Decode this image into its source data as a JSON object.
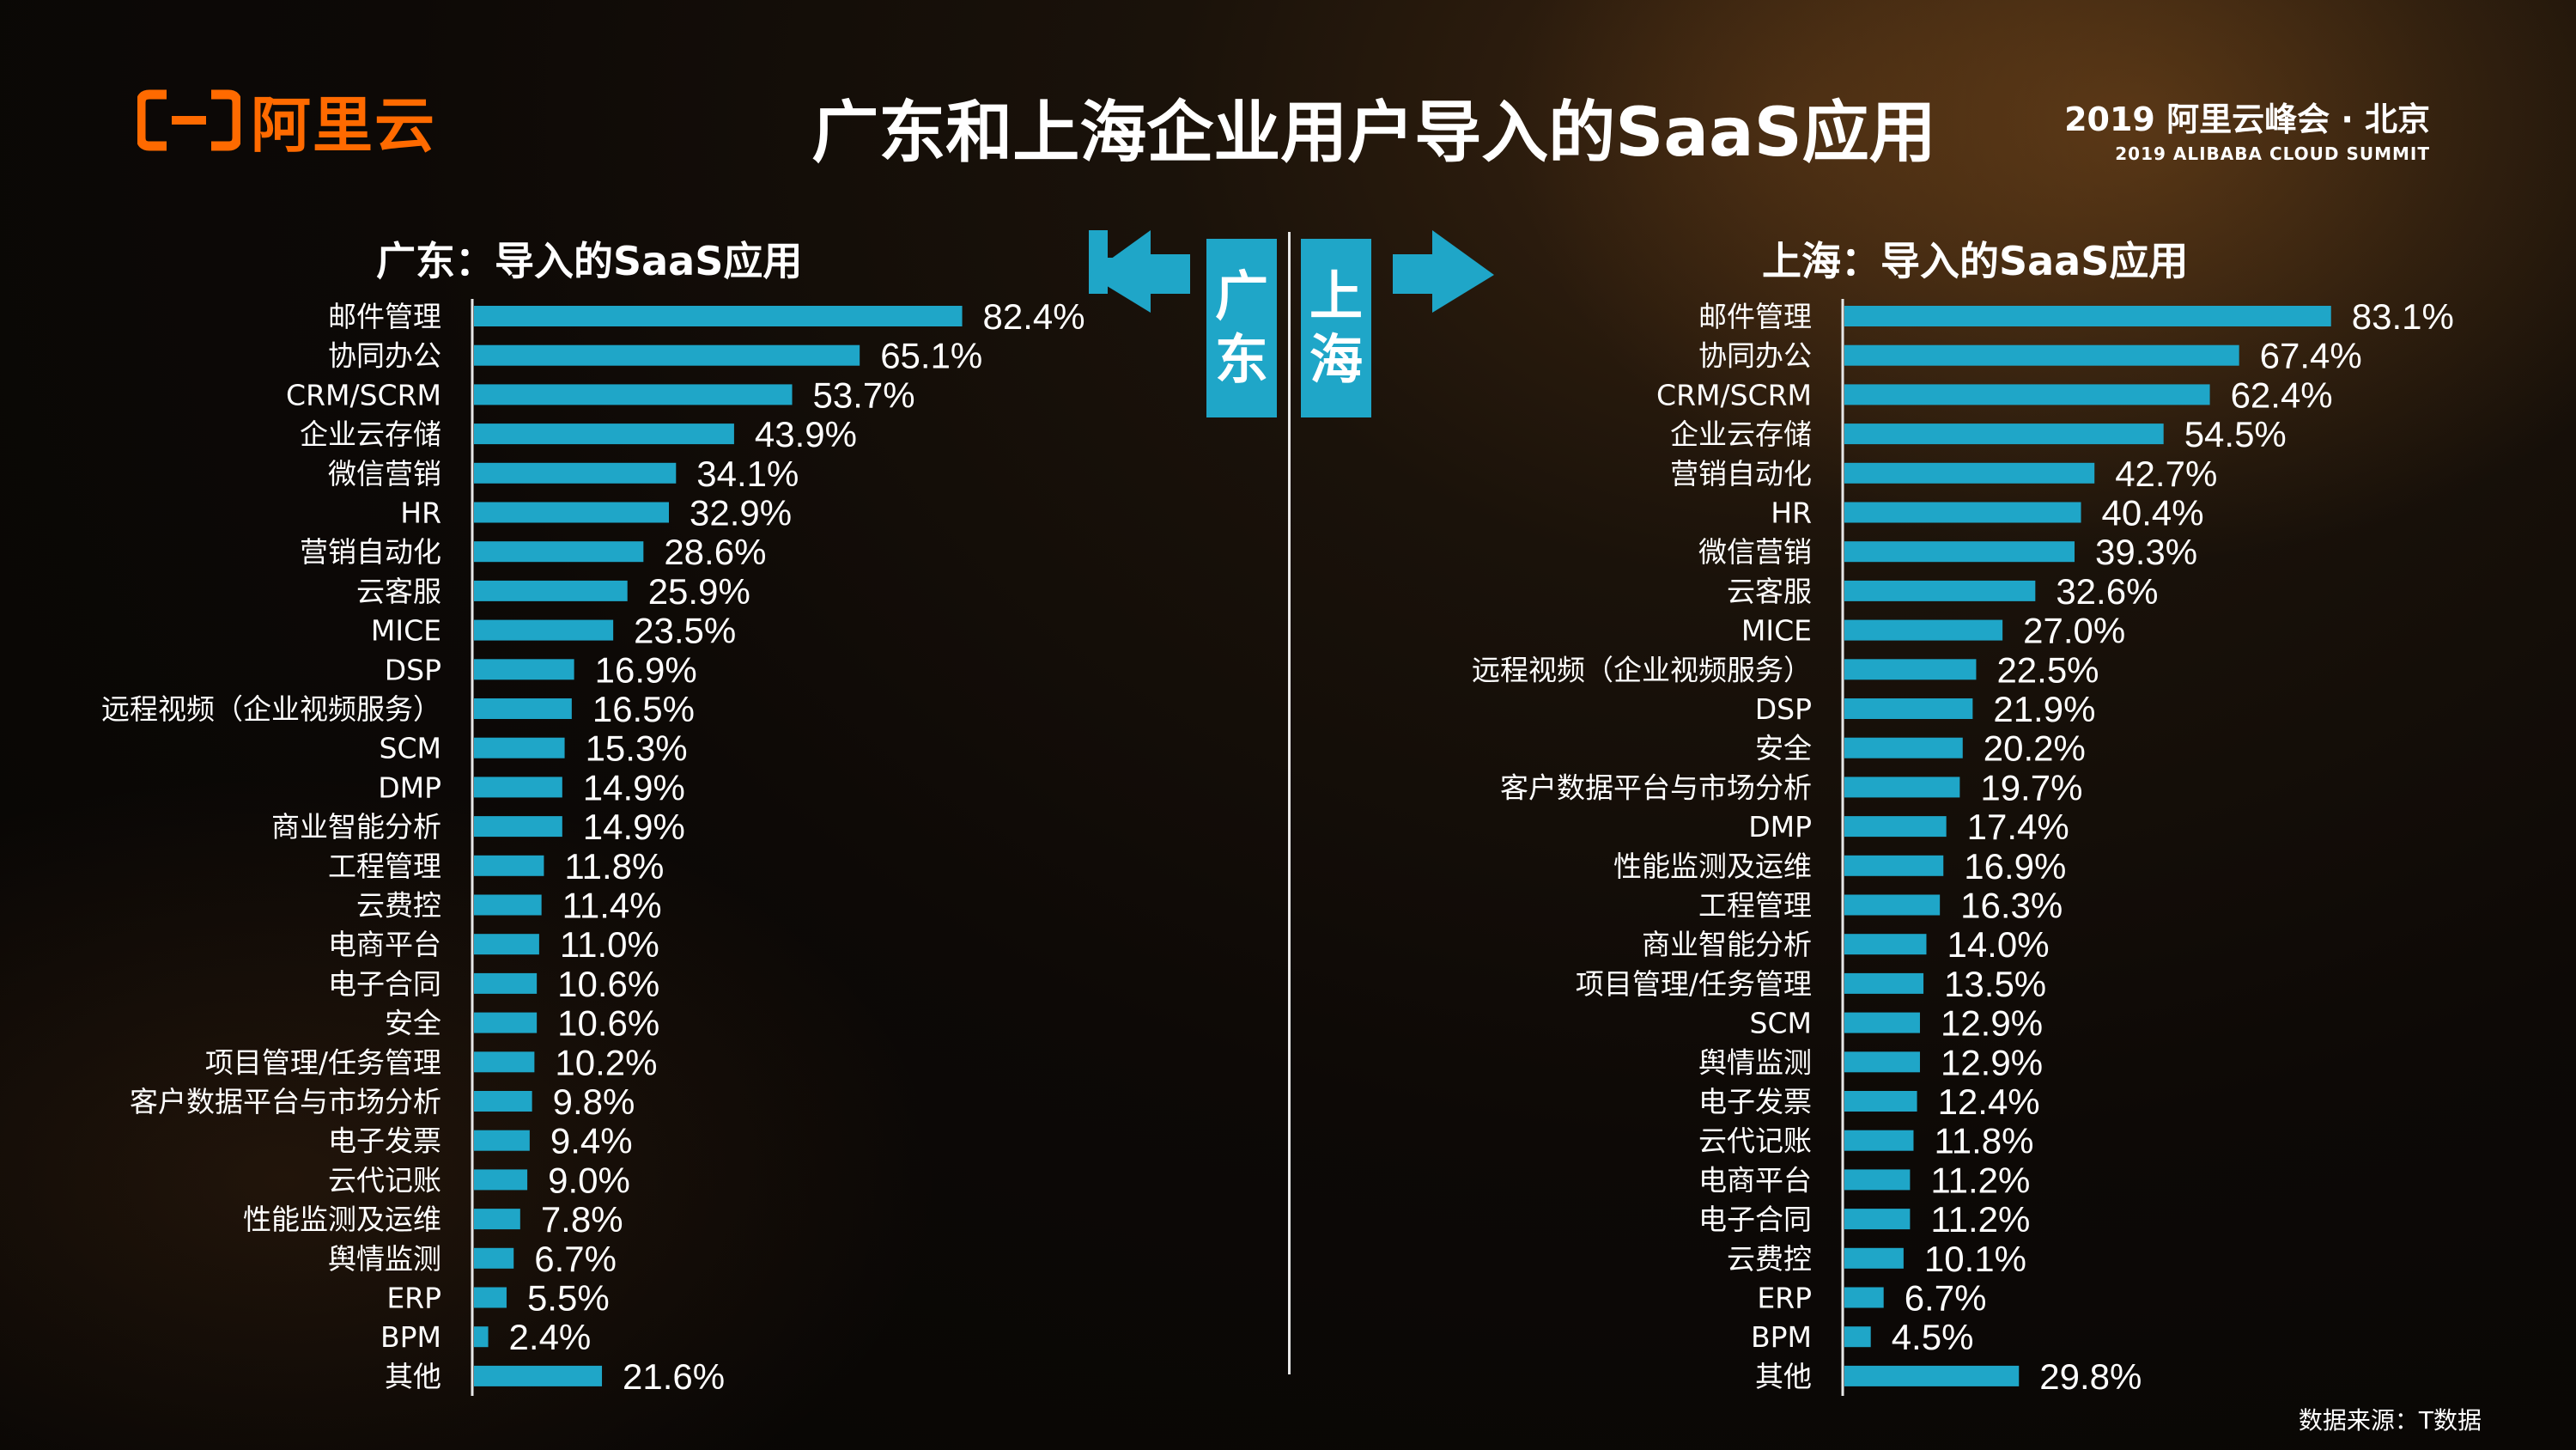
{
  "header": {
    "logo_text": "阿里云",
    "title": "广东和上海企业用户导入的SaaS应用",
    "summit_line1": "2019 阿里云峰会 · 北京",
    "summit_line2": "2019 ALIBABA CLOUD SUMMIT"
  },
  "center": {
    "left_city": [
      "广",
      "东"
    ],
    "right_city": [
      "上",
      "海"
    ]
  },
  "footer": {
    "source": "数据来源：T数据"
  },
  "colors": {
    "bar": "#1fa6c8",
    "brand": "#ff6a00"
  },
  "chart_data": [
    {
      "type": "bar",
      "orientation": "horizontal",
      "title": "广东：导入的SaaS应用",
      "unit": "%",
      "categories": [
        "邮件管理",
        "协同办公",
        "CRM/SCRM",
        "企业云存储",
        "微信营销",
        "HR",
        "营销自动化",
        "云客服",
        "MICE",
        "DSP",
        "远程视频（企业视频服务）",
        "SCM",
        "DMP",
        "商业智能分析",
        "工程管理",
        "云费控",
        "电商平台",
        "电子合同",
        "安全",
        "项目管理/任务管理",
        "客户数据平台与市场分析",
        "电子发票",
        "云代记账",
        "性能监测及运维",
        "舆情监测",
        "ERP",
        "BPM",
        "其他"
      ],
      "values": [
        82.4,
        65.1,
        53.7,
        43.9,
        34.1,
        32.9,
        28.6,
        25.9,
        23.5,
        16.9,
        16.5,
        15.3,
        14.9,
        14.9,
        11.8,
        11.4,
        11.0,
        10.6,
        10.6,
        10.2,
        9.8,
        9.4,
        9.0,
        7.8,
        6.7,
        5.5,
        2.4,
        21.6
      ],
      "labels": [
        "82.4%",
        "65.1%",
        "53.7%",
        "43.9%",
        "34.1%",
        "32.9%",
        "28.6%",
        "25.9%",
        "23.5%",
        "16.9%",
        "16.5%",
        "15.3%",
        "14.9%",
        "14.9%",
        "11.8%",
        "11.4%",
        "11.0%",
        "10.6%",
        "10.6%",
        "10.2%",
        "9.8%",
        "9.4%",
        "9.0%",
        "7.8%",
        "6.7%",
        "5.5%",
        "2.4%",
        "21.6%"
      ]
    },
    {
      "type": "bar",
      "orientation": "horizontal",
      "title": "上海：导入的SaaS应用",
      "unit": "%",
      "categories": [
        "邮件管理",
        "协同办公",
        "CRM/SCRM",
        "企业云存储",
        "营销自动化",
        "HR",
        "微信营销",
        "云客服",
        "MICE",
        "远程视频（企业视频服务）",
        "DSP",
        "安全",
        "客户数据平台与市场分析",
        "DMP",
        "性能监测及运维",
        "工程管理",
        "商业智能分析",
        "项目管理/任务管理",
        "SCM",
        "舆情监测",
        "电子发票",
        "云代记账",
        "电商平台",
        "电子合同",
        "云费控",
        "ERP",
        "BPM",
        "其他"
      ],
      "values": [
        83.1,
        67.4,
        62.4,
        54.5,
        42.7,
        40.4,
        39.3,
        32.6,
        27.0,
        22.5,
        21.9,
        20.2,
        19.7,
        17.4,
        16.9,
        16.3,
        14.0,
        13.5,
        12.9,
        12.9,
        12.4,
        11.8,
        11.2,
        11.2,
        10.1,
        6.7,
        4.5,
        29.8
      ],
      "labels": [
        "83.1%",
        "67.4%",
        "62.4%",
        "54.5%",
        "42.7%",
        "40.4%",
        "39.3%",
        "32.6%",
        "27.0%",
        "22.5%",
        "21.9%",
        "20.2%",
        "19.7%",
        "17.4%",
        "16.9%",
        "16.3%",
        "14.0%",
        "13.5%",
        "12.9%",
        "12.9%",
        "12.4%",
        "11.8%",
        "11.2%",
        "11.2%",
        "10.1%",
        "6.7%",
        "4.5%",
        "29.8%"
      ]
    }
  ]
}
